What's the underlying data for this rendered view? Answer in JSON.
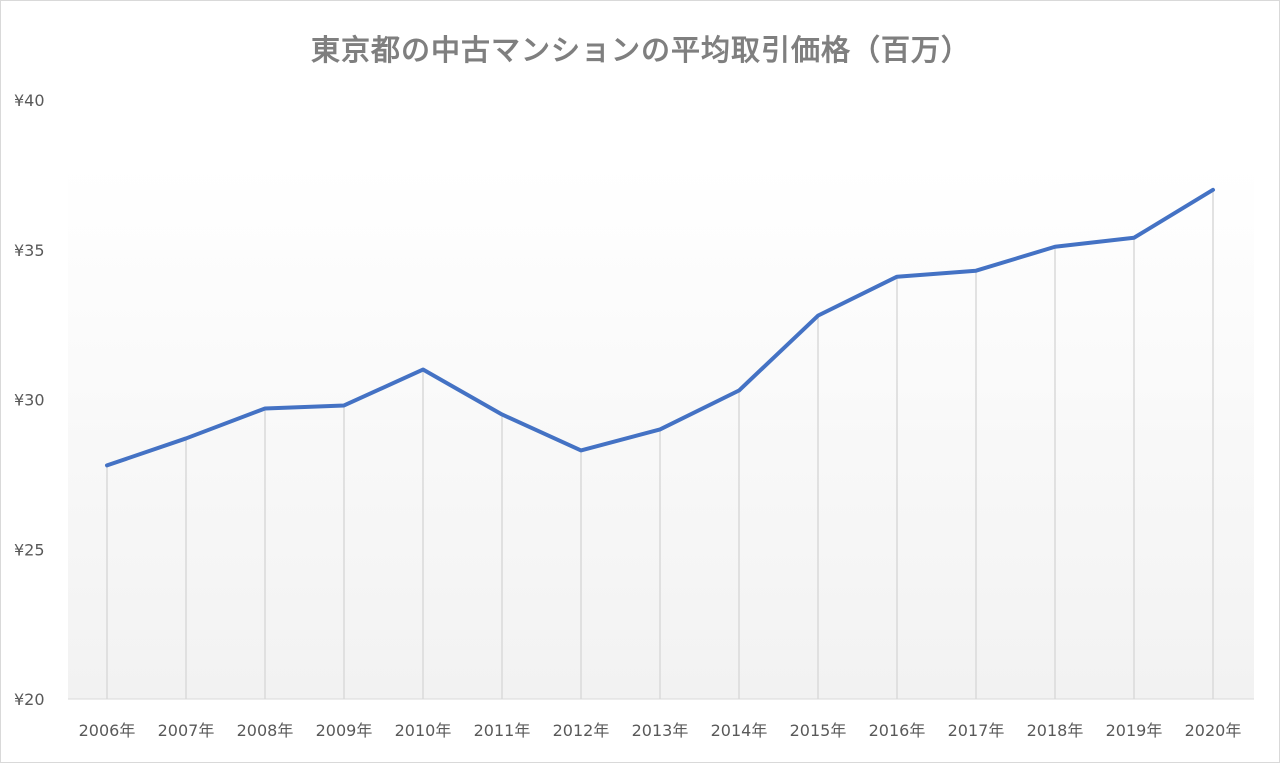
{
  "chart_data": {
    "type": "area",
    "title": "東京都の中古マンションの平均取引価格（百万）",
    "categories": [
      "2006年",
      "2007年",
      "2008年",
      "2009年",
      "2010年",
      "2011年",
      "2012年",
      "2013年",
      "2014年",
      "2015年",
      "2016年",
      "2017年",
      "2018年",
      "2019年",
      "2020年"
    ],
    "values": [
      27.8,
      28.7,
      29.7,
      29.8,
      31.0,
      29.5,
      28.3,
      29.0,
      30.3,
      32.8,
      34.1,
      34.3,
      35.1,
      35.4,
      37.0
    ],
    "y_ticks": [
      "¥20",
      "¥25",
      "¥30",
      "¥35",
      "¥40"
    ],
    "ylim": [
      20,
      40
    ],
    "xlabel": "",
    "ylabel": "",
    "legend": "none",
    "grid": "vertical drop lines",
    "colors": {
      "line": "#4472c4",
      "drop_line": "#d9d9d9",
      "area_top": "#ffffff",
      "area_bottom": "#f2f2f2"
    }
  }
}
